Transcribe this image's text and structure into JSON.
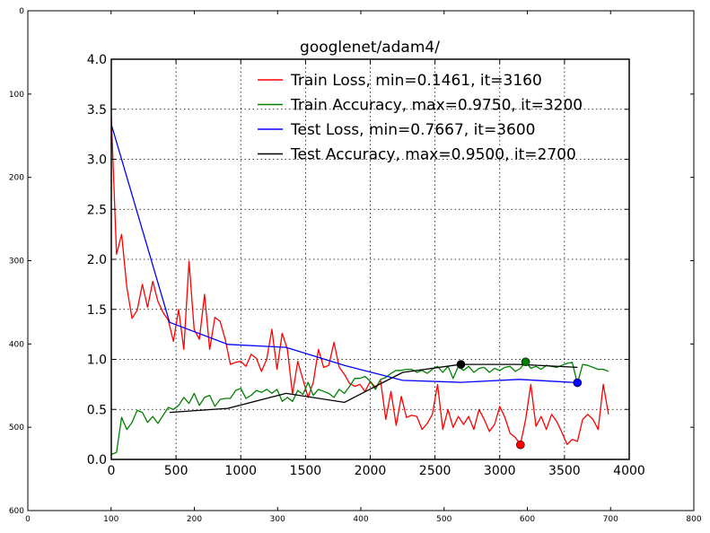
{
  "outer_axes": {
    "x_ticks": [
      "0",
      "100",
      "200",
      "300",
      "400",
      "500",
      "600",
      "700",
      "800"
    ],
    "y_ticks": [
      "0",
      "100",
      "200",
      "300",
      "400",
      "500",
      "600"
    ]
  },
  "chart_data": {
    "type": "line",
    "title": "googlenet/adam4/",
    "xlabel": "",
    "ylabel": "",
    "xlim": [
      0,
      4000
    ],
    "ylim": [
      0,
      4.0
    ],
    "x_ticks": [
      "0",
      "500",
      "1000",
      "1500",
      "2000",
      "2500",
      "3000",
      "3500",
      "4000"
    ],
    "y_ticks": [
      "0.0",
      "0.5",
      "1.0",
      "1.5",
      "2.0",
      "2.5",
      "3.0",
      "3.5",
      "4.0"
    ],
    "grid": true,
    "legend_position": "top-right",
    "series": [
      {
        "name": "Train Loss, min=0.1461, it=3160",
        "color": "#ff0000",
        "x": [
          0,
          40,
          80,
          120,
          160,
          200,
          240,
          280,
          320,
          360,
          400,
          440,
          480,
          520,
          560,
          600,
          640,
          680,
          720,
          760,
          800,
          840,
          880,
          920,
          960,
          1000,
          1040,
          1080,
          1120,
          1160,
          1200,
          1240,
          1280,
          1320,
          1360,
          1400,
          1440,
          1480,
          1520,
          1560,
          1600,
          1640,
          1680,
          1720,
          1760,
          1800,
          1840,
          1880,
          1920,
          1960,
          2000,
          2040,
          2080,
          2120,
          2160,
          2200,
          2240,
          2280,
          2320,
          2360,
          2400,
          2440,
          2480,
          2520,
          2560,
          2600,
          2640,
          2680,
          2720,
          2760,
          2800,
          2840,
          2880,
          2920,
          2960,
          3000,
          3040,
          3080,
          3120,
          3160,
          3200,
          3240,
          3280,
          3320,
          3360,
          3400,
          3440,
          3480,
          3520,
          3560,
          3600,
          3640,
          3680,
          3720,
          3760,
          3800,
          3840
        ],
        "y": [
          3.43,
          2.05,
          2.25,
          1.72,
          1.41,
          1.49,
          1.75,
          1.52,
          1.78,
          1.58,
          1.47,
          1.39,
          1.18,
          1.5,
          1.1,
          1.98,
          1.3,
          1.2,
          1.65,
          1.1,
          1.42,
          1.38,
          1.2,
          0.95,
          0.97,
          0.98,
          0.93,
          1.05,
          1.01,
          0.88,
          1.0,
          1.3,
          0.9,
          1.26,
          1.1,
          0.65,
          0.98,
          0.8,
          0.62,
          0.77,
          1.1,
          0.92,
          0.94,
          1.17,
          0.92,
          0.85,
          0.76,
          0.73,
          0.75,
          0.68,
          0.78,
          0.72,
          0.79,
          0.4,
          0.68,
          0.34,
          0.63,
          0.42,
          0.44,
          0.43,
          0.3,
          0.36,
          0.45,
          0.75,
          0.3,
          0.5,
          0.32,
          0.43,
          0.35,
          0.43,
          0.3,
          0.5,
          0.4,
          0.28,
          0.35,
          0.53,
          0.42,
          0.26,
          0.22,
          0.15,
          0.4,
          0.75,
          0.33,
          0.43,
          0.3,
          0.45,
          0.38,
          0.27,
          0.15,
          0.2,
          0.18,
          0.4,
          0.45,
          0.4,
          0.3,
          0.75,
          0.45
        ]
      },
      {
        "name": "Train Accuracy, max=0.9750, it=3200",
        "color": "#008000",
        "x": [
          0,
          40,
          80,
          120,
          160,
          200,
          240,
          280,
          320,
          360,
          400,
          440,
          480,
          520,
          560,
          600,
          640,
          680,
          720,
          760,
          800,
          840,
          880,
          920,
          960,
          1000,
          1040,
          1080,
          1120,
          1160,
          1200,
          1240,
          1280,
          1320,
          1360,
          1400,
          1440,
          1480,
          1520,
          1560,
          1600,
          1640,
          1680,
          1720,
          1760,
          1800,
          1840,
          1880,
          1920,
          1960,
          2000,
          2040,
          2080,
          2120,
          2160,
          2200,
          2240,
          2280,
          2320,
          2360,
          2400,
          2440,
          2480,
          2520,
          2560,
          2600,
          2640,
          2680,
          2720,
          2760,
          2800,
          2840,
          2880,
          2920,
          2960,
          3000,
          3040,
          3080,
          3120,
          3160,
          3200,
          3240,
          3280,
          3320,
          3360,
          3400,
          3440,
          3480,
          3520,
          3560,
          3600,
          3640,
          3680,
          3720,
          3760,
          3800,
          3840
        ],
        "y": [
          0.05,
          0.07,
          0.42,
          0.3,
          0.37,
          0.49,
          0.47,
          0.37,
          0.43,
          0.36,
          0.44,
          0.52,
          0.5,
          0.54,
          0.62,
          0.56,
          0.66,
          0.54,
          0.62,
          0.64,
          0.53,
          0.6,
          0.61,
          0.61,
          0.69,
          0.71,
          0.61,
          0.64,
          0.69,
          0.67,
          0.7,
          0.66,
          0.7,
          0.58,
          0.62,
          0.58,
          0.69,
          0.65,
          0.77,
          0.64,
          0.7,
          0.68,
          0.66,
          0.62,
          0.7,
          0.66,
          0.73,
          0.81,
          0.81,
          0.83,
          0.78,
          0.7,
          0.8,
          0.82,
          0.86,
          0.89,
          0.89,
          0.9,
          0.9,
          0.87,
          0.89,
          0.86,
          0.9,
          0.93,
          0.87,
          0.93,
          0.81,
          0.93,
          0.89,
          0.93,
          0.87,
          0.91,
          0.92,
          0.87,
          0.91,
          0.89,
          0.92,
          0.93,
          0.88,
          0.91,
          0.975,
          0.91,
          0.93,
          0.9,
          0.94,
          0.93,
          0.92,
          0.94,
          0.96,
          0.97,
          0.76,
          0.95,
          0.94,
          0.92,
          0.9,
          0.9,
          0.88
        ]
      },
      {
        "name": "Test Loss, min=0.7667, it=3600",
        "color": "#0000ff",
        "x": [
          0,
          450,
          900,
          1350,
          1800,
          2250,
          2700,
          3150,
          3600
        ],
        "y": [
          3.35,
          1.37,
          1.15,
          1.12,
          0.94,
          0.79,
          0.77,
          0.8,
          0.7667
        ]
      },
      {
        "name": "Test Accuracy, max=0.9500, it=2700",
        "color": "#000000",
        "x": [
          450,
          900,
          1350,
          1800,
          2250,
          2700,
          3150,
          3600
        ],
        "y": [
          0.47,
          0.51,
          0.66,
          0.57,
          0.87,
          0.95,
          0.95,
          0.92
        ]
      }
    ],
    "markers": [
      {
        "series": "Train Loss, min=0.1461, it=3160",
        "x": 3160,
        "y": 0.1461,
        "color": "#ff0000"
      },
      {
        "series": "Train Accuracy, max=0.9750, it=3200",
        "x": 3200,
        "y": 0.975,
        "color": "#008000"
      },
      {
        "series": "Test Loss, min=0.7667, it=3600",
        "x": 3600,
        "y": 0.7667,
        "color": "#0000ff"
      },
      {
        "series": "Test Accuracy, max=0.9500, it=2700",
        "x": 2700,
        "y": 0.95,
        "color": "#000000"
      }
    ]
  }
}
